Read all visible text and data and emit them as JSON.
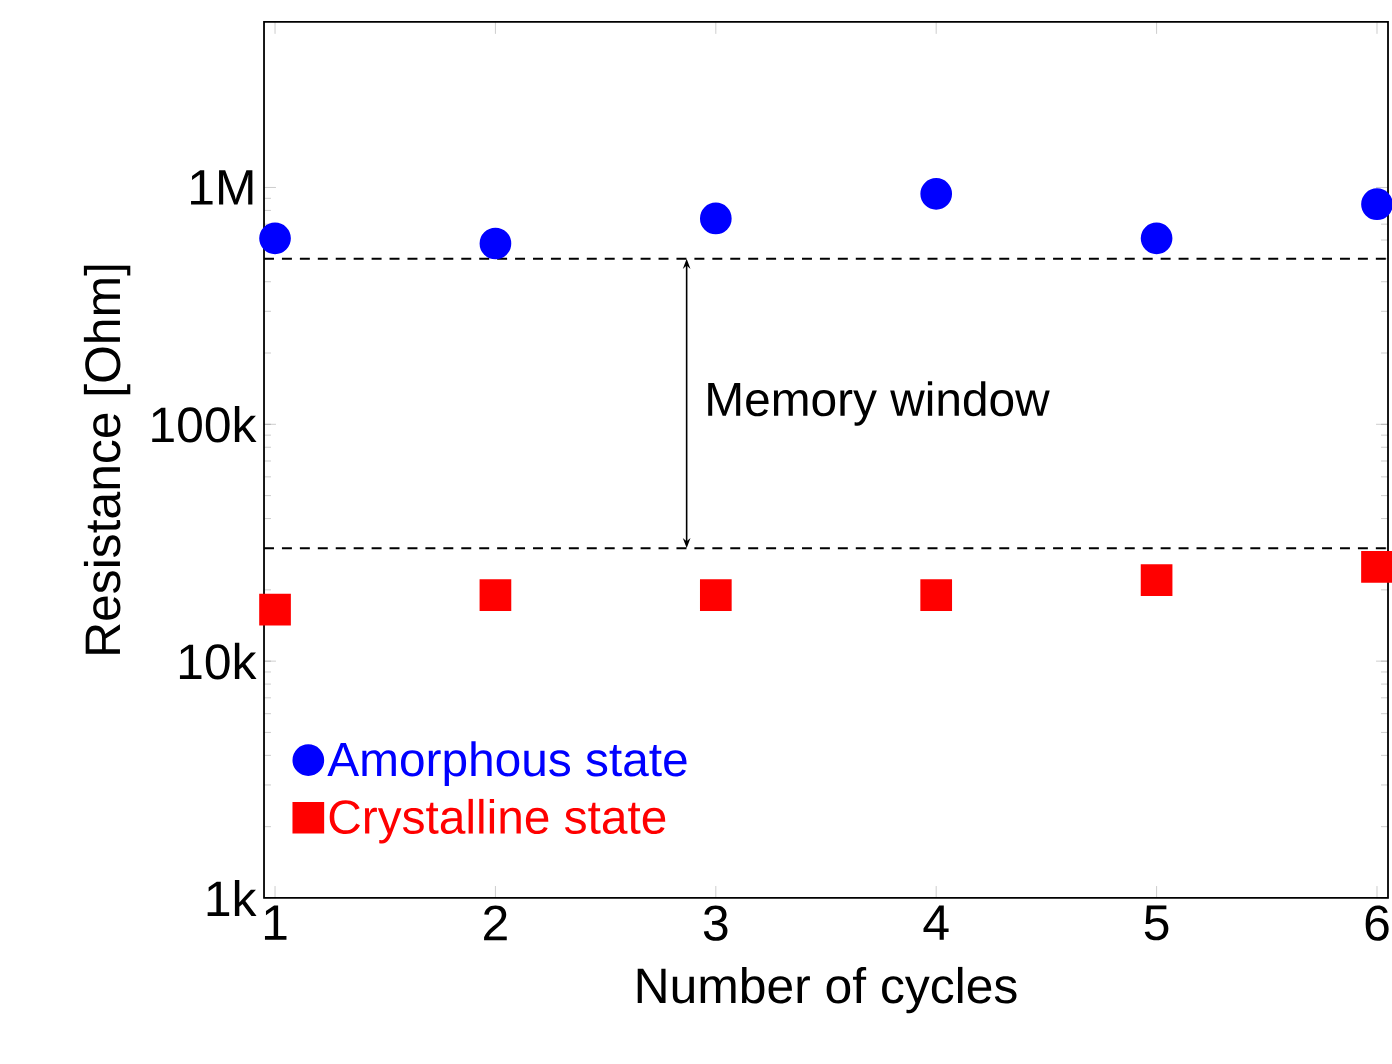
{
  "chart_data": {
    "type": "scatter",
    "xlabel": "Number of cycles",
    "ylabel": "Resistance [Ohm]",
    "x": [
      1,
      2,
      3,
      4,
      5,
      6
    ],
    "series": [
      {
        "name": "Amorphous state",
        "color": "#0000ff",
        "marker": "circle",
        "values": [
          610000,
          580000,
          740000,
          940000,
          610000,
          850000
        ]
      },
      {
        "name": "Crystalline state",
        "color": "#ff0000",
        "marker": "square",
        "values": [
          16500,
          19000,
          19000,
          19000,
          22000,
          25000
        ]
      }
    ],
    "log": "y",
    "xlim": [
      0.95,
      6.05
    ],
    "ylim": [
      1000,
      5000000
    ],
    "xticks": [
      1,
      2,
      3,
      4,
      5,
      6
    ],
    "yticks": [
      {
        "value": 1000,
        "label": "1k"
      },
      {
        "value": 10000,
        "label": "10k"
      },
      {
        "value": 100000,
        "label": "100k"
      },
      {
        "value": 1000000,
        "label": "1M"
      }
    ],
    "ref_lines": [
      {
        "axis": "y",
        "value": 500000,
        "color": "#000000",
        "line_style": "dashed"
      },
      {
        "axis": "y",
        "value": 30000,
        "color": "#000000",
        "line_style": "dashed"
      }
    ],
    "annotations": [
      "Memory window"
    ],
    "legend": "bottom left",
    "grid": false
  }
}
